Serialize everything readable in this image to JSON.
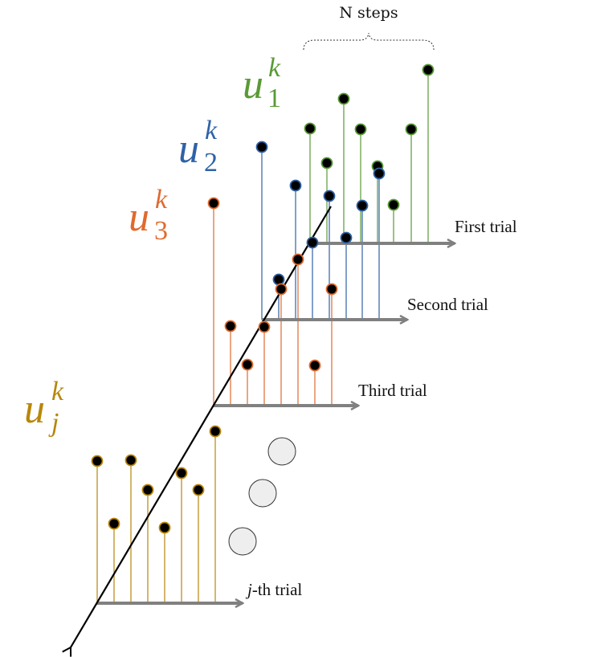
{
  "brace_label": "N steps",
  "trials": [
    {
      "label": "First trial",
      "color": "#5a9a36"
    },
    {
      "label": "Second trial",
      "color": "#2f62a6"
    },
    {
      "label": "Third trial",
      "color": "#e06a2e"
    },
    {
      "label_italic": "j",
      "label_rest": "-th trial",
      "color": "#b8860b"
    }
  ],
  "variables": [
    {
      "base": "u",
      "sup": "k",
      "sub": "1",
      "color": "#5a9a36"
    },
    {
      "base": "u",
      "sup": "k",
      "sub": "2",
      "color": "#2f62a6"
    },
    {
      "base": "u",
      "sup": "k",
      "sub": "3",
      "color": "#e06a2e"
    },
    {
      "base": "u",
      "sup": "k",
      "sub": "j",
      "color": "#b8860b"
    }
  ],
  "colors": {
    "axis_arrow": "#808080",
    "main_axis": "#000000",
    "marker_fill": "#000000",
    "ellipsis_fill": "#eeeeee"
  }
}
